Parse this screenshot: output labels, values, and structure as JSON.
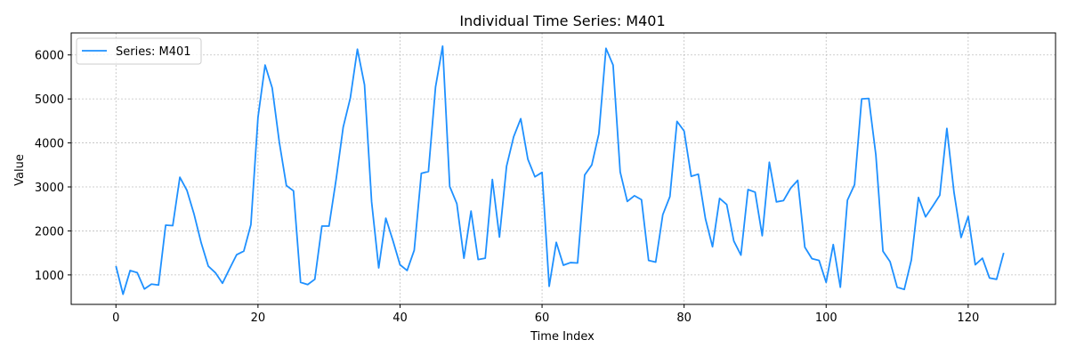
{
  "chart_data": {
    "type": "line",
    "title": "Individual Time Series: M401",
    "xlabel": "Time Index",
    "ylabel": "Value",
    "xlim": [
      -6.3,
      132.3
    ],
    "ylim": [
      330,
      6500
    ],
    "xticks": [
      0,
      20,
      40,
      60,
      80,
      100,
      120
    ],
    "yticks": [
      1000,
      2000,
      3000,
      4000,
      5000,
      6000
    ],
    "grid": true,
    "legend_position": "upper-left",
    "series": [
      {
        "name": "Series: M401",
        "color": "#1e90ff",
        "x": [
          0,
          1,
          2,
          3,
          4,
          5,
          6,
          7,
          8,
          9,
          10,
          11,
          12,
          13,
          14,
          15,
          16,
          17,
          18,
          19,
          20,
          21,
          22,
          23,
          24,
          25,
          26,
          27,
          28,
          29,
          30,
          31,
          32,
          33,
          34,
          35,
          36,
          37,
          38,
          39,
          40,
          41,
          42,
          43,
          44,
          45,
          46,
          47,
          48,
          49,
          50,
          51,
          52,
          53,
          54,
          55,
          56,
          57,
          58,
          59,
          60,
          61,
          62,
          63,
          64,
          65,
          66,
          67,
          68,
          69,
          70,
          71,
          72,
          73,
          74,
          75,
          76,
          77,
          78,
          79,
          80,
          81,
          82,
          83,
          84,
          85,
          86,
          87,
          88,
          89,
          90,
          91,
          92,
          93,
          94,
          95,
          96,
          97,
          98,
          99,
          100,
          101,
          102,
          103,
          104,
          105,
          106,
          107,
          108,
          109,
          110,
          111,
          112,
          113,
          114,
          115,
          116,
          117,
          118,
          119,
          120,
          121,
          122,
          123,
          124,
          125
        ],
        "values": [
          1200,
          560,
          1100,
          1050,
          680,
          790,
          770,
          2130,
          2120,
          3220,
          2920,
          2380,
          1730,
          1200,
          1050,
          810,
          1140,
          1460,
          1540,
          2140,
          4580,
          5770,
          5250,
          4020,
          3030,
          2910,
          830,
          780,
          900,
          2110,
          2110,
          3170,
          4360,
          5020,
          6130,
          5320,
          2660,
          1160,
          2290,
          1780,
          1230,
          1100,
          1560,
          3310,
          3350,
          5270,
          6200,
          3010,
          2620,
          1380,
          2450,
          1350,
          1380,
          3170,
          1860,
          3470,
          4140,
          4550,
          3630,
          3230,
          3330,
          740,
          1740,
          1220,
          1280,
          1270,
          3270,
          3500,
          4210,
          6150,
          5770,
          3340,
          2670,
          2800,
          2710,
          1330,
          1290,
          2370,
          2780,
          4490,
          4270,
          3240,
          3290,
          2280,
          1640,
          2740,
          2600,
          1770,
          1450,
          2940,
          2880,
          1890,
          3560,
          2660,
          2690,
          2970,
          3150,
          1630,
          1370,
          1330,
          830,
          1690,
          720,
          2700,
          3050,
          5000,
          5010,
          3730,
          1540,
          1300,
          720,
          670,
          1340,
          2760,
          2320,
          2560,
          2810,
          4330,
          2880,
          1850,
          2330,
          1230,
          1380,
          930,
          900,
          1500
        ]
      }
    ]
  }
}
